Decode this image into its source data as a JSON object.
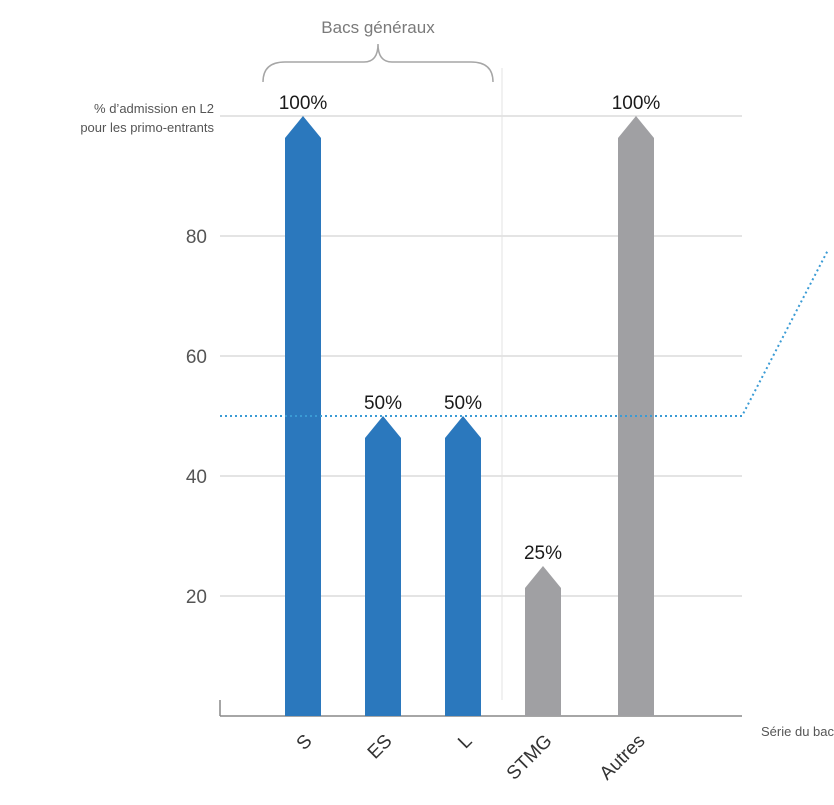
{
  "chart_data": {
    "type": "bar",
    "categories": [
      "S",
      "ES",
      "L",
      "STMG",
      "Autres"
    ],
    "values": [
      100,
      50,
      50,
      25,
      100
    ],
    "data_labels": [
      "100%",
      "50%",
      "50%",
      "25%",
      "100%"
    ],
    "bar_colors": [
      "#2b78bd",
      "#2b78bd",
      "#2b78bd",
      "#a0a0a3",
      "#a0a0a3"
    ],
    "ylabel": [
      "% d’admission en L2",
      "pour les primo-entrants"
    ],
    "xlabel": "Série du bac",
    "yticks": [
      20,
      40,
      60,
      80
    ],
    "ylim": [
      0,
      100
    ],
    "reference_line": {
      "value": 50,
      "color": "#3a9bd5",
      "style": "dotted"
    },
    "group_bracket": {
      "label": "Bacs généraux",
      "categories": [
        "S",
        "ES",
        "L"
      ]
    },
    "grid": true
  }
}
